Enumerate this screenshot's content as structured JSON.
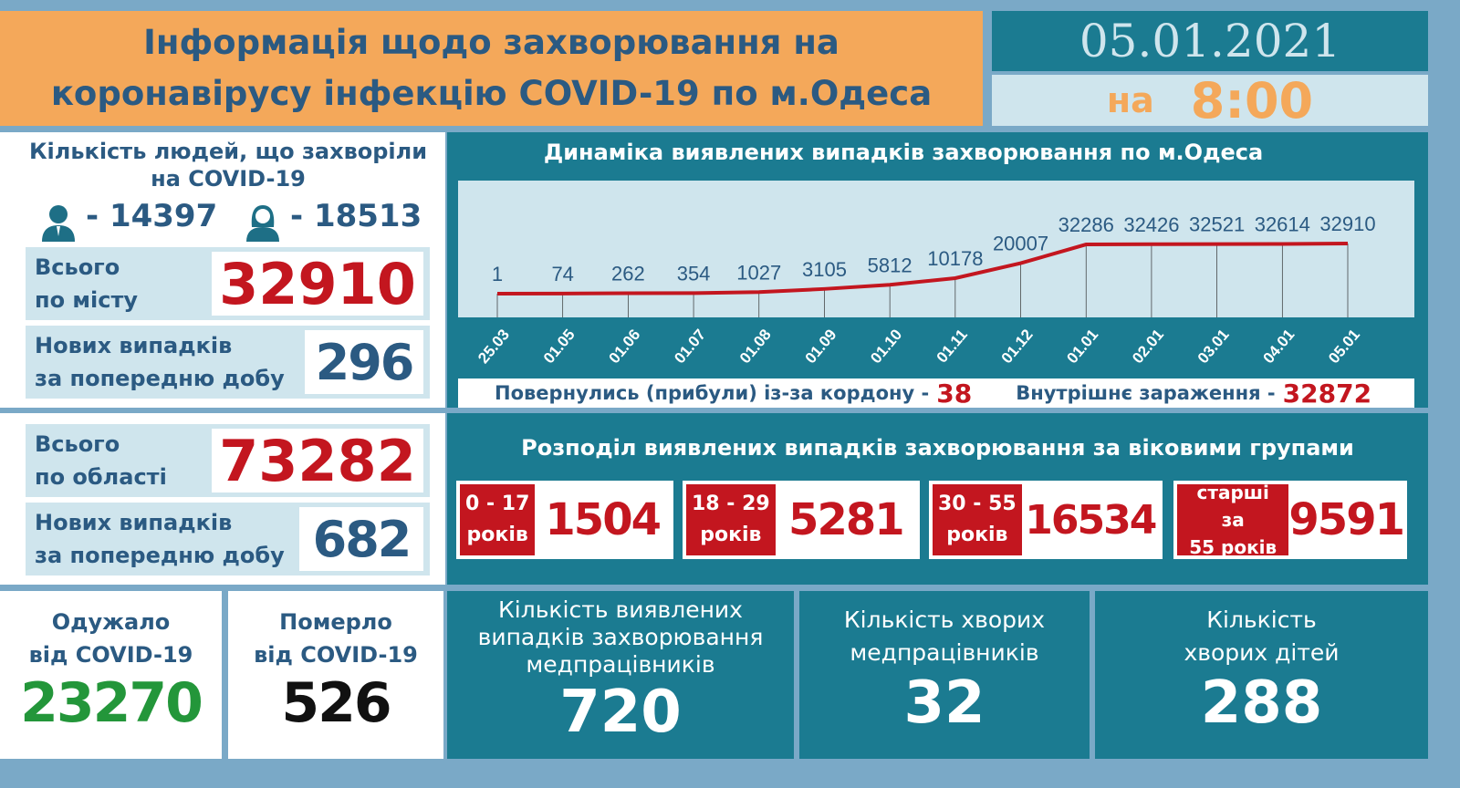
{
  "header": {
    "title_line1": "Інформація щодо захворювання на",
    "title_line2": "коронавірусу інфекцію COVID-19 по м.Одеса",
    "date": "05.01.2021",
    "time_prefix": "на",
    "time": "8:00"
  },
  "city": {
    "title": "Кількість людей, що захворіли на COVID-19",
    "men_icon": "man-icon",
    "men": "- 14397",
    "women_icon": "woman-icon",
    "women": "- 18513",
    "total_label_1": "Всього",
    "total_label_2": "по місту",
    "total": "32910",
    "new_label_1": "Нових випадків",
    "new_label_2": "за попередню добу",
    "new": "296"
  },
  "region": {
    "total_label_1": "Всього",
    "total_label_2": "по області",
    "total": "73282",
    "new_label_1": "Нових випадків",
    "new_label_2": "за попередню добу",
    "new": "682"
  },
  "chart_data": {
    "type": "line",
    "title": "Динаміка виявлених випадків захворювання по м.Одеса",
    "categories": [
      "25.03",
      "01.05",
      "01.06",
      "01.07",
      "01.08",
      "01.09",
      "01.10",
      "01.11",
      "01.12",
      "01.01",
      "02.01",
      "03.01",
      "04.01",
      "05.01"
    ],
    "values": [
      1,
      74,
      262,
      354,
      1027,
      3105,
      5812,
      10178,
      20007,
      32286,
      32426,
      32521,
      32614,
      32910
    ],
    "data_labels": [
      "1",
      "74",
      "262",
      "354",
      "1027",
      "3105",
      "5812",
      "10178",
      "20007",
      "32286",
      "32426",
      "32521",
      "32614",
      "32910"
    ],
    "line_color": "#c3161f",
    "grid": false
  },
  "origin": {
    "returned_label": "Повернулись (прибули) із-за кордону -",
    "returned": "38",
    "internal_label": "Внутрішнє зараження -",
    "internal": "32872"
  },
  "ages": {
    "title": "Розподіл виявлених випадків захворювання за віковими групами",
    "groups": [
      {
        "l1": "0 - 17",
        "l2": "років",
        "value": "1504"
      },
      {
        "l1": "18 - 29",
        "l2": "років",
        "value": "5281"
      },
      {
        "l1": "30 - 55",
        "l2": "років",
        "value": "16534"
      },
      {
        "l1": "старші за",
        "l2": "55 років",
        "value": "9591"
      }
    ]
  },
  "recovered": {
    "l1": "Одужало",
    "l2": "від COVID-19",
    "value": "23270"
  },
  "died": {
    "l1": "Померло",
    "l2": "від COVID-19",
    "value": "526"
  },
  "medics_cases": {
    "l1": "Кількість виявлених",
    "l2": "випадків захворювання",
    "l3": "медпрацівників",
    "value": "720"
  },
  "medics_sick": {
    "l1": "Кількість хворих",
    "l2": "медпрацівників",
    "value": "32"
  },
  "children": {
    "l1": "Кількість",
    "l2": "хворих дітей",
    "value": "288"
  },
  "colors": {
    "orange": "#f4a85a",
    "teal": "#1b7b91",
    "light": "#cfe5ed",
    "red": "#c3161f",
    "green": "#23963a",
    "navy": "#2b5a82"
  }
}
